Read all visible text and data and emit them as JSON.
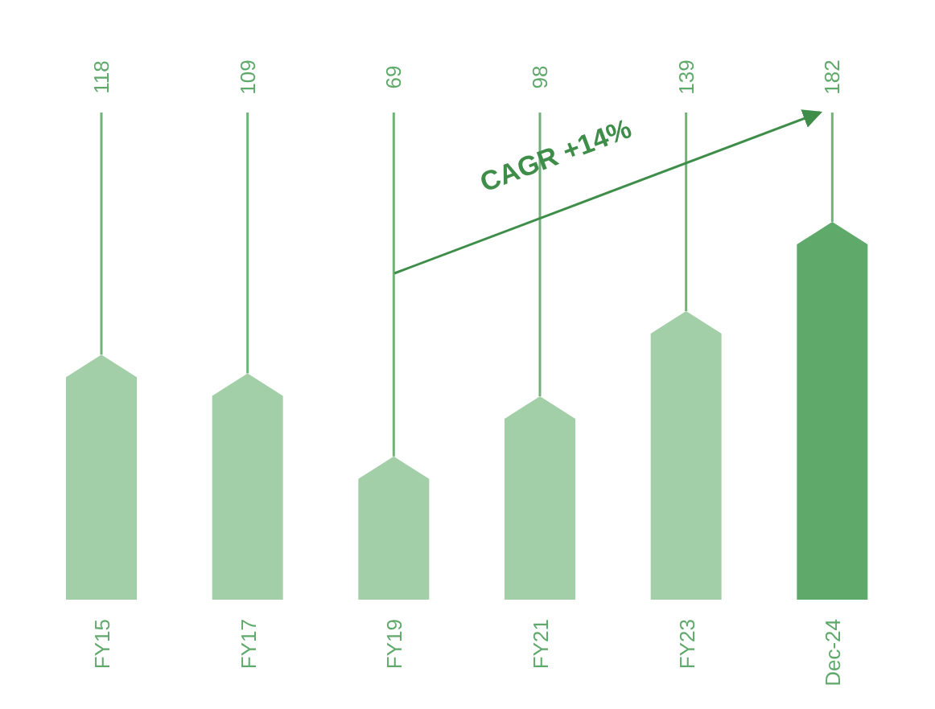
{
  "chart_data": {
    "type": "bar",
    "categories": [
      "FY15",
      "FY17",
      "FY19",
      "FY21",
      "FY23",
      "Dec-24"
    ],
    "values": [
      118,
      109,
      69,
      98,
      139,
      182
    ],
    "colors": [
      "#a3cfa8",
      "#a3cfa8",
      "#a3cfa8",
      "#a3cfa8",
      "#a3cfa8",
      "#5fa96a"
    ],
    "data_labels": true,
    "tick_labels": "x",
    "annotations": [
      "CAGR +14%"
    ]
  }
}
